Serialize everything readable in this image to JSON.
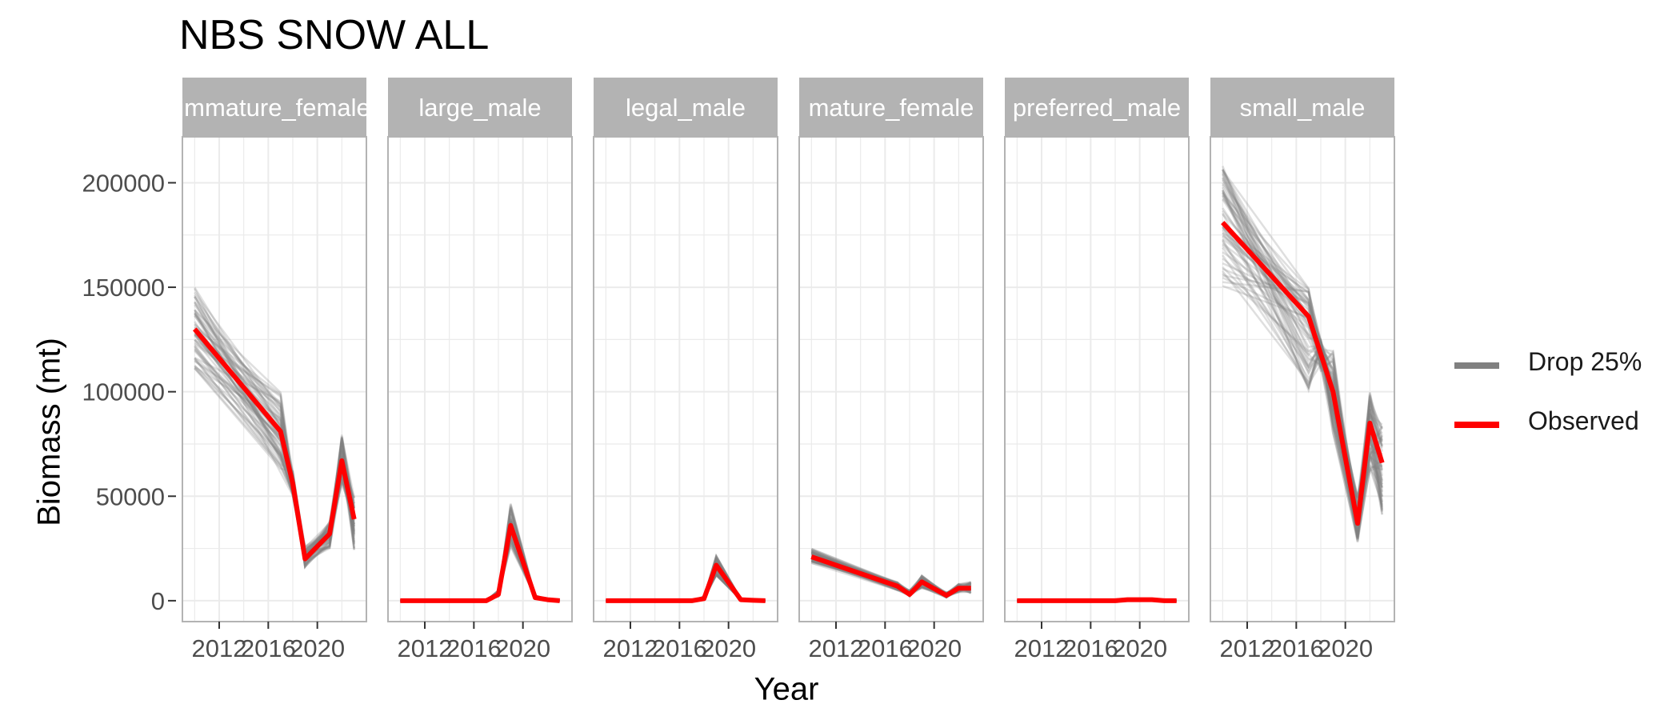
{
  "colors": {
    "drop": "#808080",
    "observed": "#ff0000",
    "strip_bg": "#b3b3b3",
    "strip_text": "#ffffff",
    "panel_border": "#b3b3b3",
    "grid": "#ebebeb"
  },
  "chart_data": {
    "type": "line",
    "title": "NBS SNOW ALL",
    "xlabel": "Year",
    "ylabel": "Biomass (mt)",
    "ylim": [
      -10000,
      222000
    ],
    "xlim": [
      2009,
      2024
    ],
    "y_ticks": [
      0,
      50000,
      100000,
      150000,
      200000
    ],
    "x_ticks": [
      2012,
      2016,
      2020
    ],
    "grid": true,
    "facet_by": "category",
    "legend": {
      "position": "right",
      "entries": [
        {
          "name": "Drop 25%",
          "color": "#808080"
        },
        {
          "name": "Observed",
          "color": "#ff0000"
        }
      ]
    },
    "panels": [
      {
        "label": "immature_female",
        "x": [
          2010,
          2017,
          2018,
          2019,
          2021,
          2022,
          2023
        ],
        "observed": [
          130000,
          81000,
          56000,
          20000,
          32000,
          67000,
          39000
        ],
        "drop_min": [
          111000,
          59000,
          50000,
          16000,
          25000,
          55000,
          22000
        ],
        "drop_max": [
          150000,
          100000,
          62000,
          26000,
          38000,
          80000,
          50000
        ]
      },
      {
        "label": "large_male",
        "x": [
          2010,
          2017,
          2018,
          2019,
          2021,
          2022,
          2023
        ],
        "observed": [
          0,
          0,
          3000,
          36000,
          1500,
          500,
          0
        ],
        "drop_min": [
          0,
          0,
          2000,
          25000,
          1000,
          300,
          0
        ],
        "drop_max": [
          0,
          0,
          5000,
          47000,
          2500,
          800,
          0
        ]
      },
      {
        "label": "legal_male",
        "x": [
          2010,
          2017,
          2018,
          2019,
          2021,
          2022,
          2023
        ],
        "observed": [
          0,
          0,
          1000,
          17000,
          500,
          200,
          0
        ],
        "drop_min": [
          0,
          0,
          500,
          12000,
          300,
          100,
          0
        ],
        "drop_max": [
          0,
          0,
          2000,
          22000,
          1000,
          400,
          0
        ]
      },
      {
        "label": "mature_female",
        "x": [
          2010,
          2017,
          2018,
          2019,
          2021,
          2022,
          2023
        ],
        "observed": [
          21000,
          7000,
          3000,
          9000,
          2500,
          6000,
          6000
        ],
        "drop_min": [
          18000,
          5000,
          2000,
          6000,
          1500,
          4000,
          3500
        ],
        "drop_max": [
          25000,
          9000,
          5000,
          12000,
          4000,
          8000,
          9000
        ]
      },
      {
        "label": "preferred_male",
        "x": [
          2010,
          2017,
          2018,
          2019,
          2021,
          2022,
          2023
        ],
        "observed": [
          0,
          0,
          0,
          500,
          500,
          0,
          0
        ],
        "drop_min": [
          0,
          0,
          0,
          200,
          200,
          0,
          0
        ],
        "drop_max": [
          0,
          0,
          0,
          1000,
          1000,
          0,
          0
        ]
      },
      {
        "label": "small_male",
        "x": [
          2010,
          2017,
          2018,
          2019,
          2021,
          2022,
          2023
        ],
        "observed": [
          181000,
          136000,
          118000,
          100000,
          37000,
          85000,
          66000
        ],
        "drop_min": [
          150000,
          100000,
          110000,
          80000,
          28000,
          60000,
          40000
        ],
        "drop_max": [
          208000,
          150000,
          125000,
          120000,
          50000,
          100000,
          85000
        ]
      }
    ]
  }
}
